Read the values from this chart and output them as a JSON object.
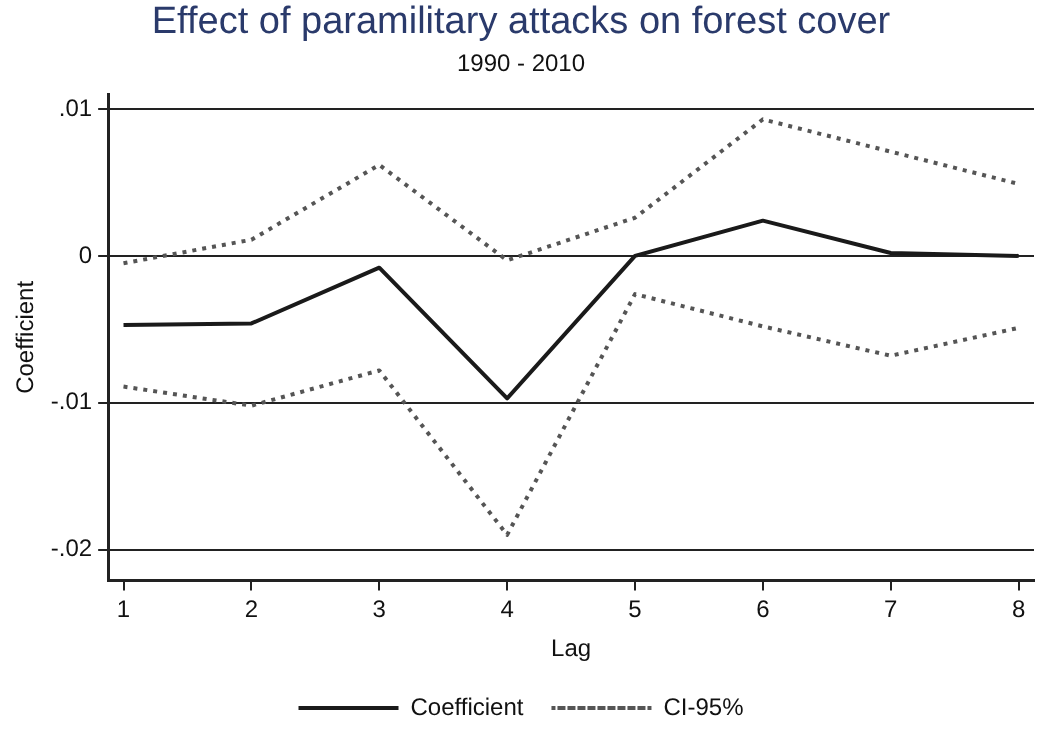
{
  "chart_data": {
    "type": "line",
    "title": "Effect of paramilitary attacks on forest cover",
    "subtitle": "1990 - 2010",
    "xlabel": "Lag",
    "ylabel": "Coefficient",
    "x": [
      1,
      2,
      3,
      4,
      5,
      6,
      7,
      8
    ],
    "series": [
      {
        "name": "Coefficient",
        "color": "#1a1a1a",
        "line_style": "solid",
        "values": [
          -0.0047,
          -0.0046,
          -0.0008,
          -0.0097,
          0.0,
          0.0024,
          0.0002,
          0.0
        ]
      },
      {
        "name": "CI-95%",
        "color": "#555555",
        "line_style": "dotted",
        "values": [
          -0.0005,
          0.0011,
          0.0062,
          -0.0003,
          0.0026,
          0.0093,
          0.0071,
          0.0049
        ]
      },
      {
        "color": "#555555",
        "line_style": "dotted",
        "values": [
          -0.0089,
          -0.0102,
          -0.0078,
          -0.019,
          -0.0026,
          -0.0048,
          -0.0068,
          -0.0049
        ]
      }
    ],
    "xlim": [
      0.88,
      8.12
    ],
    "xticks": [
      1,
      2,
      3,
      4,
      5,
      6,
      7,
      8
    ],
    "ylim": [
      -0.0221,
      0.011
    ],
    "yticks": [
      {
        "value": -0.02,
        "label": "-.02"
      },
      {
        "value": -0.01,
        "label": "-.01"
      },
      0,
      {
        "value": 0.01,
        "label": ".01"
      }
    ],
    "grid": "y",
    "legend": "bottom",
    "marker": "none"
  }
}
